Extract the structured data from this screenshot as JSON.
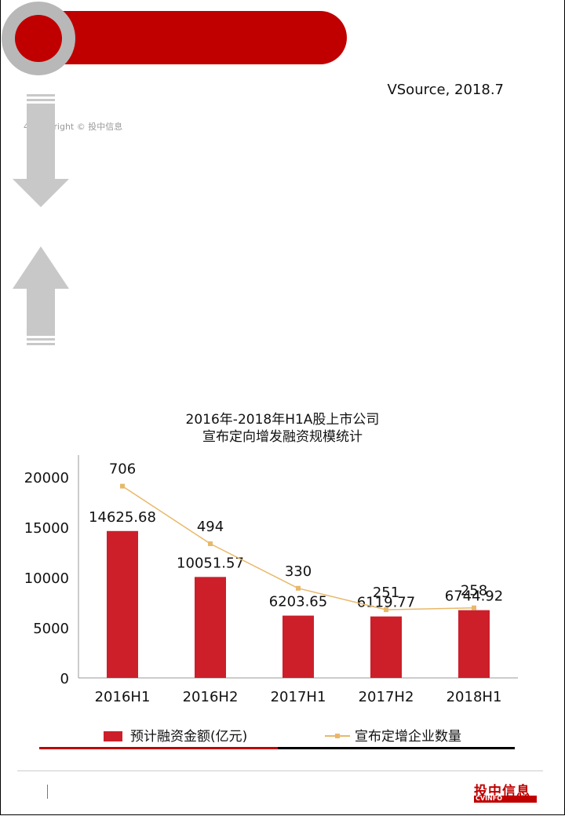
{
  "source": "VSource, 2018.7",
  "copyright": "4    Copyright © 投中信息",
  "chart_data": {
    "type": "bar",
    "title": [
      "2016年-2018年H1A股上市公司",
      "宣布定向增发融资规模统计"
    ],
    "categories": [
      "2016H1",
      "2016H2",
      "2017H1",
      "2017H2",
      "2018H1"
    ],
    "series": [
      {
        "name": "预计融资金额(亿元)",
        "kind": "bar",
        "values": [
          14625.68,
          10051.57,
          6203.65,
          6119.77,
          6744.92
        ],
        "labels": [
          "14625.68",
          "10051.57",
          "6203.65",
          "6119.77",
          "6744.92"
        ],
        "color": "#cc1f2a"
      },
      {
        "name": "宣布定增企业数量",
        "kind": "line",
        "values": [
          706,
          494,
          330,
          251,
          258
        ],
        "labels": [
          "706",
          "494",
          "330",
          "251",
          "258"
        ],
        "color": "#e8b86a"
      }
    ],
    "y_ticks": [
      "20000",
      "15000",
      "10000",
      "5000",
      "0"
    ],
    "ylim": [
      0,
      20000
    ],
    "legend_position": "bottom"
  },
  "logo": {
    "main": "投中信息",
    "sub": "CVINFO"
  },
  "colors": {
    "accent": "#c00000",
    "ring": "#b8b8b8",
    "arrow": "#c8c8c8"
  }
}
